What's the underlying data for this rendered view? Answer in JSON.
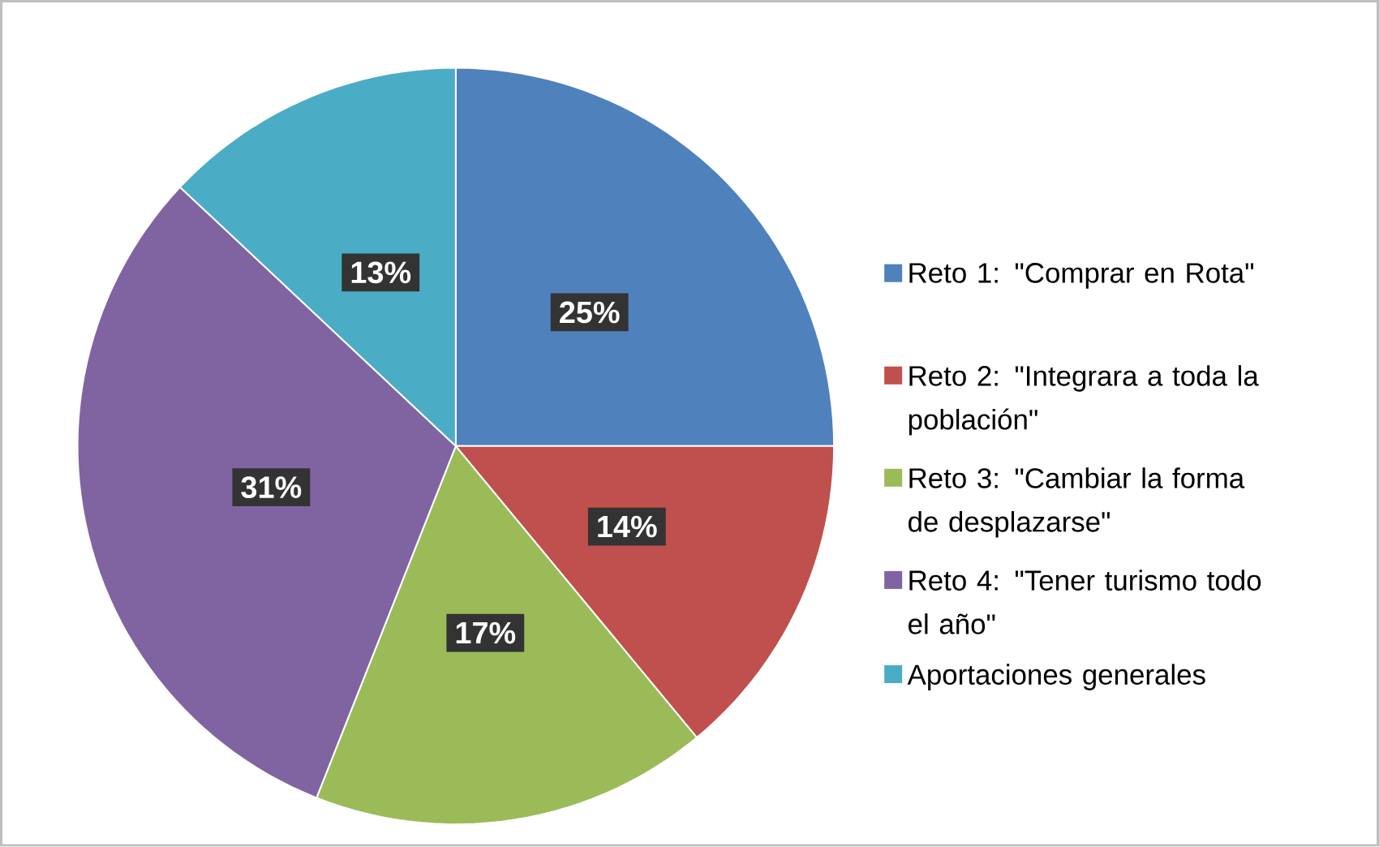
{
  "chart_data": {
    "type": "pie",
    "categories": [
      "Reto 1: \"Comprar en Rota\"",
      "Reto 2: \"Integrara a toda la población\"",
      "Reto 3: \"Cambiar la forma de desplazarse\"",
      "Reto 4: \"Tener turismo todo el año\"",
      "Aportaciones generales"
    ],
    "values": [
      25,
      14,
      17,
      31,
      13
    ],
    "value_labels": [
      "25%",
      "14%",
      "17%",
      "31%",
      "13%"
    ],
    "colors": [
      "#4f81bd",
      "#c0504d",
      "#9bbb59",
      "#8064a2",
      "#4bacc6"
    ],
    "legend": "right"
  }
}
